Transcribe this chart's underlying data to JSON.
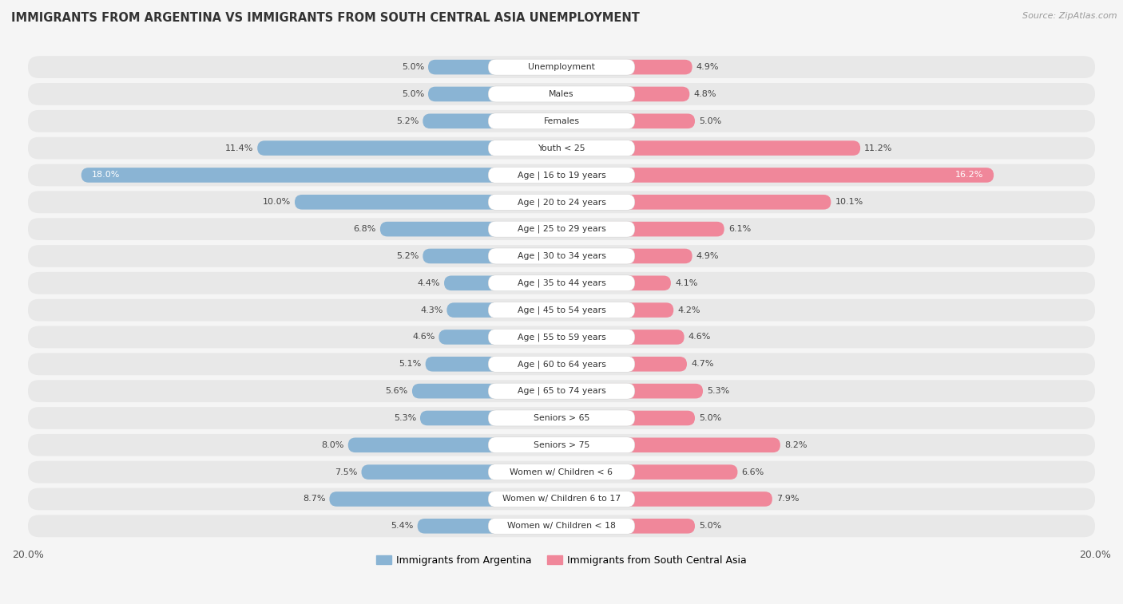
{
  "title": "IMMIGRANTS FROM ARGENTINA VS IMMIGRANTS FROM SOUTH CENTRAL ASIA UNEMPLOYMENT",
  "source": "Source: ZipAtlas.com",
  "categories": [
    "Unemployment",
    "Males",
    "Females",
    "Youth < 25",
    "Age | 16 to 19 years",
    "Age | 20 to 24 years",
    "Age | 25 to 29 years",
    "Age | 30 to 34 years",
    "Age | 35 to 44 years",
    "Age | 45 to 54 years",
    "Age | 55 to 59 years",
    "Age | 60 to 64 years",
    "Age | 65 to 74 years",
    "Seniors > 65",
    "Seniors > 75",
    "Women w/ Children < 6",
    "Women w/ Children 6 to 17",
    "Women w/ Children < 18"
  ],
  "argentina_values": [
    5.0,
    5.0,
    5.2,
    11.4,
    18.0,
    10.0,
    6.8,
    5.2,
    4.4,
    4.3,
    4.6,
    5.1,
    5.6,
    5.3,
    8.0,
    7.5,
    8.7,
    5.4
  ],
  "sca_values": [
    4.9,
    4.8,
    5.0,
    11.2,
    16.2,
    10.1,
    6.1,
    4.9,
    4.1,
    4.2,
    4.6,
    4.7,
    5.3,
    5.0,
    8.2,
    6.6,
    7.9,
    5.0
  ],
  "argentina_color": "#8ab4d4",
  "sca_color": "#f0879a",
  "row_bg_color": "#e8e8e8",
  "label_bg_color": "#ffffff",
  "background_color": "#f5f5f5",
  "axis_max": 20.0,
  "legend_argentina": "Immigrants from Argentina",
  "legend_sca": "Immigrants from South Central Asia",
  "value_label_color": "#444444",
  "title_color": "#333333"
}
